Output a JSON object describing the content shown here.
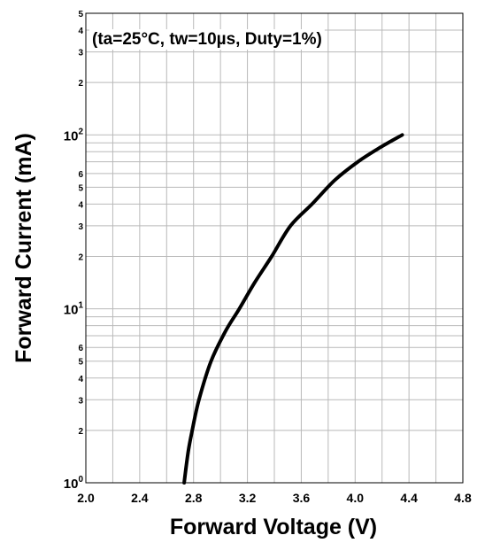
{
  "chart_data": {
    "type": "line",
    "xlabel": "Forward Voltage (V)",
    "ylabel": "Forward Current (mA)",
    "annotation": "(ta=25°C, tw=10µs, Duty=1%)",
    "x_scale": "linear",
    "y_scale": "log",
    "xlim": [
      2.0,
      4.8
    ],
    "ylim": [
      1,
      500
    ],
    "grid": true,
    "x_ticks": [
      2.0,
      2.4,
      2.8,
      3.2,
      3.6,
      4.0,
      4.4,
      4.8
    ],
    "x_tick_labels": [
      "2.0",
      "2.4",
      "2.8",
      "3.2",
      "3.6",
      "4.0",
      "4.4",
      "4.8"
    ],
    "y_major_ticks": [
      {
        "value": 1,
        "base": "10",
        "exp": "0"
      },
      {
        "value": 10,
        "base": "10",
        "exp": "1"
      },
      {
        "value": 100,
        "base": "10",
        "exp": "2"
      }
    ],
    "y_minor_tick_labels": [
      {
        "value": 2,
        "label": "2"
      },
      {
        "value": 3,
        "label": "3"
      },
      {
        "value": 4,
        "label": "4"
      },
      {
        "value": 5,
        "label": "5"
      },
      {
        "value": 6,
        "label": "6"
      },
      {
        "value": 20,
        "label": "2"
      },
      {
        "value": 30,
        "label": "3"
      },
      {
        "value": 40,
        "label": "4"
      },
      {
        "value": 50,
        "label": "5"
      },
      {
        "value": 60,
        "label": "6"
      },
      {
        "value": 200,
        "label": "2"
      },
      {
        "value": 300,
        "label": "3"
      },
      {
        "value": 400,
        "label": "4"
      },
      {
        "value": 500,
        "label": "5"
      }
    ],
    "series": [
      {
        "color": "#000000",
        "x": [
          2.73,
          2.76,
          2.79,
          2.84,
          2.93,
          3.04,
          3.14,
          3.25,
          3.38,
          3.52,
          3.68,
          3.85,
          4.02,
          4.19,
          4.35
        ],
        "y": [
          1,
          1.5,
          2,
          3,
          5,
          7.5,
          10,
          14,
          20,
          30,
          40,
          55,
          70,
          85,
          100
        ]
      }
    ]
  }
}
